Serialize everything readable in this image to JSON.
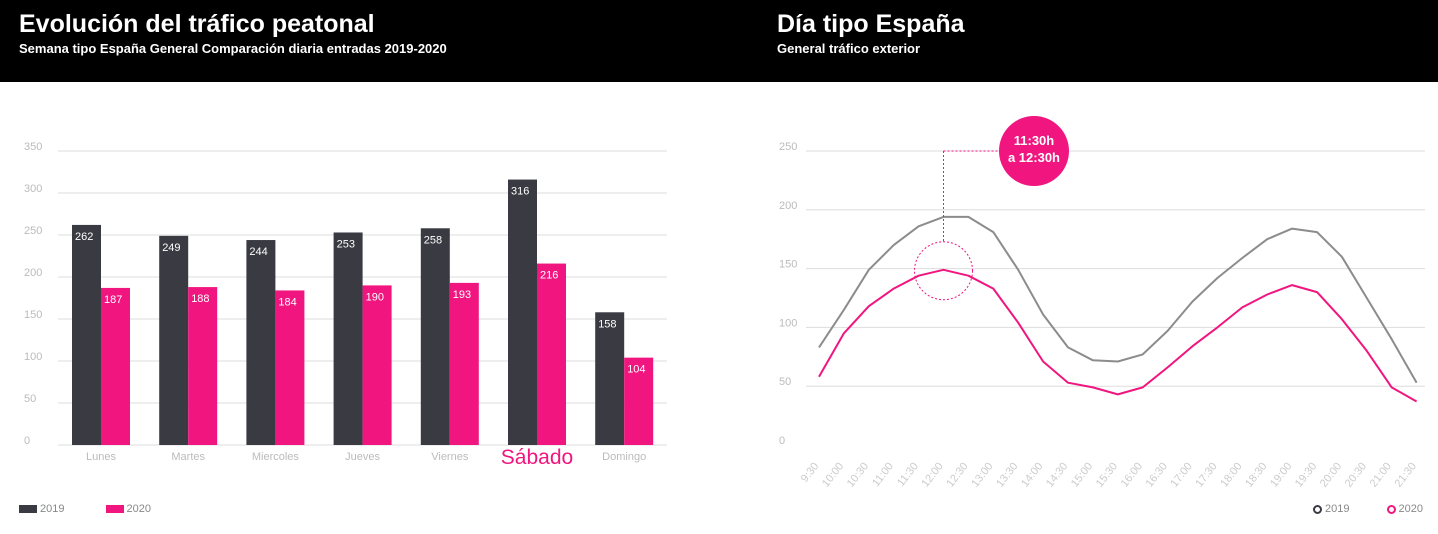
{
  "left_panel": {
    "title": "Evolución del tráfico peatonal",
    "subtitle": "Semana tipo España General Comparación diaria entradas 2019-2020"
  },
  "right_panel": {
    "title": "Día tipo España",
    "subtitle": "General tráfico exterior",
    "callout": [
      "11:30h",
      "a 12:30h"
    ]
  },
  "colors": {
    "series_2019": "#3a3b42",
    "series_2020": "#f0157f",
    "line_2019": "#8c8c8c",
    "grid": "#dddddd",
    "axis_text": "#bbbbbb",
    "highlight": "#f0157f"
  },
  "chart_data": [
    {
      "type": "bar",
      "categories": [
        "Lunes",
        "Martes",
        "Miercoles",
        "Jueves",
        "Viernes",
        "Sábado",
        "Domingo"
      ],
      "highlight_category": "Sábado",
      "series": [
        {
          "name": "2019",
          "values": [
            262,
            249,
            244,
            253,
            258,
            316,
            158
          ]
        },
        {
          "name": "2020",
          "values": [
            187,
            188,
            184,
            190,
            193,
            216,
            104
          ]
        }
      ],
      "ylim": [
        0,
        350
      ],
      "yticks": [
        0,
        50,
        100,
        150,
        200,
        250,
        300,
        350
      ],
      "grid": true,
      "legend_position": "bottom-left"
    },
    {
      "type": "line",
      "x": [
        "9:30",
        "10:00",
        "10:30",
        "11:00",
        "11:30",
        "12:00",
        "12:30",
        "13:00",
        "13:30",
        "14:00",
        "14:30",
        "15:00",
        "15:30",
        "16:00",
        "16:30",
        "17:00",
        "17:30",
        "18:00",
        "18:30",
        "19:00",
        "19:30",
        "20:00",
        "20:30",
        "21:00",
        "21:30"
      ],
      "series": [
        {
          "name": "2019",
          "values": [
            83,
            115,
            149,
            170,
            186,
            194,
            194,
            181,
            149,
            111,
            83,
            72,
            71,
            77,
            97,
            122,
            142,
            159,
            175,
            184,
            181,
            160,
            125,
            90,
            53
          ]
        },
        {
          "name": "2020",
          "values": [
            58,
            95,
            118,
            133,
            144,
            149,
            144,
            133,
            104,
            71,
            53,
            49,
            43,
            49,
            66,
            84,
            100,
            117,
            128,
            136,
            130,
            107,
            80,
            49,
            37
          ]
        }
      ],
      "highlight_x": "12:00",
      "ylim": [
        0,
        250
      ],
      "yticks": [
        0,
        50,
        100,
        150,
        200,
        250
      ],
      "grid": true,
      "legend_position": "bottom-right"
    }
  ]
}
